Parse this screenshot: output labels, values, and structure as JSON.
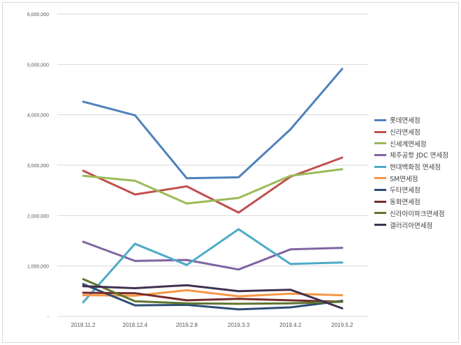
{
  "chart_data": {
    "type": "line",
    "title": "",
    "xlabel": "",
    "ylabel": "",
    "ylim": [
      0,
      6000000
    ],
    "y_ticks": [
      0,
      1000000,
      2000000,
      3000000,
      4000000,
      5000000,
      6000000
    ],
    "y_tick_labels": [
      "-",
      "1,000,000",
      "2,000,000",
      "3,000,000",
      "4,000,000",
      "5,000,000",
      "6,000,000"
    ],
    "grid": true,
    "legend_position": "right",
    "categories": [
      "2018.11.2",
      "2018.12.4",
      "2019.2.8",
      "2019.3.3",
      "2019.4.2",
      "2019.5.2"
    ],
    "series": [
      {
        "name": "롯데면세점",
        "color": "#4f81bd",
        "values": [
          4260000,
          3990000,
          2740000,
          2760000,
          3710000,
          4910000
        ]
      },
      {
        "name": "신라면세점",
        "color": "#c0504d",
        "values": [
          2890000,
          2420000,
          2580000,
          2060000,
          2770000,
          3150000
        ]
      },
      {
        "name": "신세계면세점",
        "color": "#9bbb59",
        "values": [
          2790000,
          2690000,
          2240000,
          2350000,
          2790000,
          2920000
        ]
      },
      {
        "name": "제주공항 JDC 면세점",
        "color": "#8064a2",
        "values": [
          1480000,
          1100000,
          1120000,
          930000,
          1330000,
          1360000
        ]
      },
      {
        "name": "현대백화점 면세점",
        "color": "#4bacc6",
        "values": [
          280000,
          1440000,
          1020000,
          1730000,
          1040000,
          1070000
        ]
      },
      {
        "name": "SM면세점",
        "color": "#f79646",
        "values": [
          420000,
          410000,
          520000,
          400000,
          450000,
          420000
        ]
      },
      {
        "name": "두타면세점",
        "color": "#2c4d75",
        "values": [
          640000,
          220000,
          230000,
          140000,
          180000,
          310000
        ]
      },
      {
        "name": "동화면세점",
        "color": "#772c2a",
        "values": [
          470000,
          460000,
          320000,
          350000,
          320000,
          290000
        ]
      },
      {
        "name": "신라아이파크면세점",
        "color": "#5f7530",
        "values": [
          740000,
          300000,
          260000,
          250000,
          260000,
          290000
        ]
      },
      {
        "name": "갤러리아면세점",
        "color": "#403151",
        "values": [
          600000,
          560000,
          620000,
          500000,
          530000,
          160000
        ]
      }
    ]
  }
}
